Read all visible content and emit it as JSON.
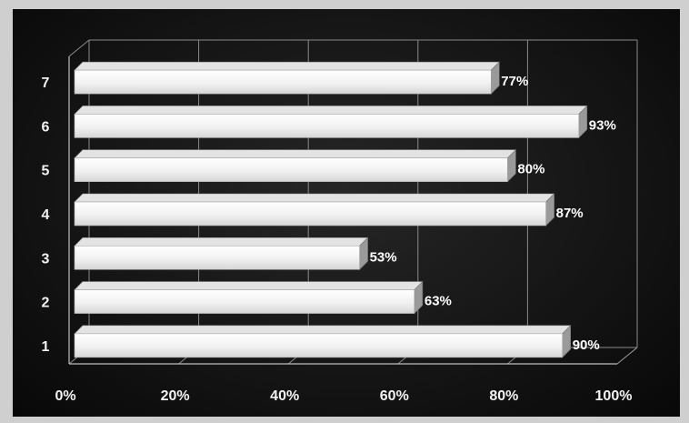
{
  "chart_data": {
    "type": "bar",
    "orientation": "horizontal",
    "categories": [
      "1",
      "2",
      "3",
      "4",
      "5",
      "6",
      "7"
    ],
    "values": [
      90,
      63,
      53,
      87,
      80,
      93,
      77
    ],
    "data_labels": [
      "90%",
      "63%",
      "53%",
      "87%",
      "80%",
      "93%",
      "77%"
    ],
    "x_ticks": [
      "0%",
      "20%",
      "40%",
      "60%",
      "80%",
      "100%"
    ],
    "xlim": [
      0,
      100
    ],
    "grid": true,
    "style": "3d",
    "colors": {
      "background": "#141414",
      "bar_face": "#f4f4f4",
      "bar_shadow": "#9a9a9a",
      "grid": "#8a8a8a",
      "text": "#ffffff"
    }
  }
}
